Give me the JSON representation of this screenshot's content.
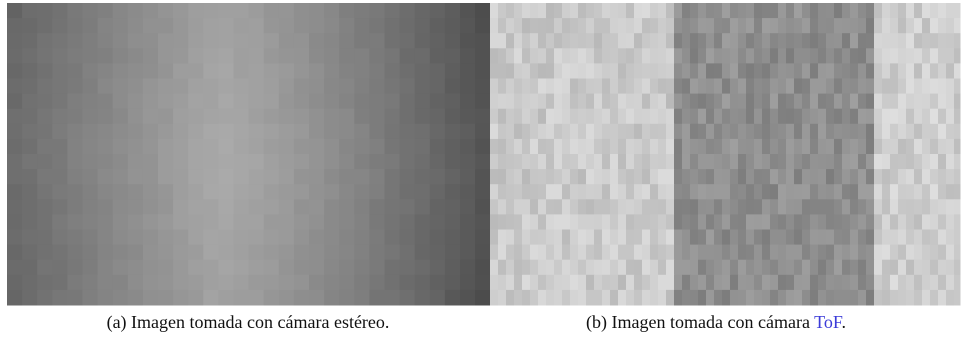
{
  "figures": [
    {
      "caption": {
        "label": "(a)",
        "text": "Imagen tomada con cámara estéreo."
      }
    },
    {
      "caption": {
        "label": "(b)",
        "text": "Imagen tomada con cámara",
        "link": "ToF",
        "after": "."
      }
    }
  ]
}
